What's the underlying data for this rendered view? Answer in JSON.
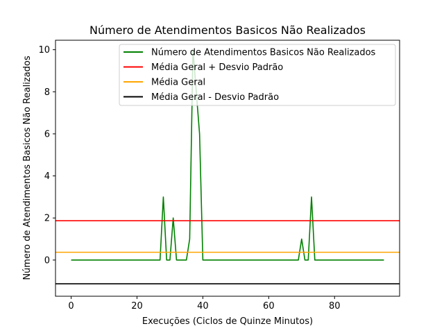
{
  "chart_data": {
    "type": "line",
    "title": "Número de Atendimentos Basicos Não Realizados",
    "xlabel": "Execuções (Ciclos de Quinze Minutos)",
    "ylabel": "Número de Atendimentos Basicos Não Realizados",
    "xlim": [
      -4.75,
      99.75
    ],
    "ylim": [
      -1.72,
      10.45
    ],
    "xticks": [
      0,
      20,
      40,
      60,
      80
    ],
    "yticks": [
      0,
      2,
      4,
      6,
      8,
      10
    ],
    "grid": false,
    "legend_position": "top-right",
    "series": [
      {
        "name": "Número de Atendimentos Basicos Não Realizados",
        "color": "#008000",
        "x": [
          0,
          1,
          2,
          3,
          4,
          5,
          6,
          7,
          8,
          9,
          10,
          11,
          12,
          13,
          14,
          15,
          16,
          17,
          18,
          19,
          20,
          21,
          22,
          23,
          24,
          25,
          26,
          27,
          28,
          29,
          30,
          31,
          32,
          33,
          34,
          35,
          36,
          37,
          38,
          39,
          40,
          41,
          42,
          43,
          44,
          45,
          46,
          47,
          48,
          49,
          50,
          51,
          52,
          53,
          54,
          55,
          56,
          57,
          58,
          59,
          60,
          61,
          62,
          63,
          64,
          65,
          66,
          67,
          68,
          69,
          70,
          71,
          72,
          73,
          74,
          75,
          76,
          77,
          78,
          79,
          80,
          81,
          82,
          83,
          84,
          85,
          86,
          87,
          88,
          89,
          90,
          91,
          92,
          93,
          94,
          95
        ],
        "y": [
          0,
          0,
          0,
          0,
          0,
          0,
          0,
          0,
          0,
          0,
          0,
          0,
          0,
          0,
          0,
          0,
          0,
          0,
          0,
          0,
          0,
          0,
          0,
          0,
          0,
          0,
          0,
          0,
          3,
          0,
          0,
          2,
          0,
          0,
          0,
          0,
          1,
          10,
          8,
          6,
          0,
          0,
          0,
          0,
          0,
          0,
          0,
          0,
          0,
          0,
          0,
          0,
          0,
          0,
          0,
          0,
          0,
          0,
          0,
          0,
          0,
          0,
          0,
          0,
          0,
          0,
          0,
          0,
          0,
          0,
          1,
          0,
          0,
          3,
          0,
          0,
          0,
          0,
          0,
          0,
          0,
          0,
          0,
          0,
          0,
          0,
          0,
          0,
          0,
          0,
          0,
          0,
          0,
          0,
          0,
          0
        ]
      },
      {
        "name": "Média Geral + Desvio Padrão",
        "color": "#ff0000",
        "y": 1.87
      },
      {
        "name": "Média Geral",
        "color": "#ffa500",
        "y": 0.37
      },
      {
        "name": "Média Geral - Desvio Padrão",
        "color": "#000000",
        "y": -1.13
      }
    ]
  }
}
